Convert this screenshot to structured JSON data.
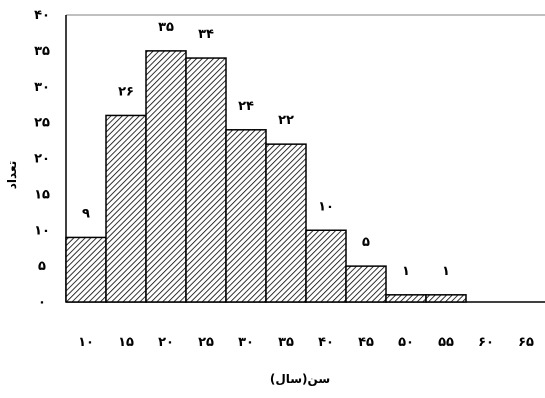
{
  "chart_data": {
    "type": "bar",
    "xlabel": "سن(سال)",
    "ylabel": "تعداد",
    "ylim": [
      0,
      40
    ],
    "y_ticks": [
      "۰",
      "۵",
      "۱۰",
      "۱۵",
      "۲۰",
      "۲۵",
      "۳۰",
      "۳۵",
      "۴۰"
    ],
    "x_ticks": [
      "۱۰",
      "۱۵",
      "۲۰",
      "۲۵",
      "۳۰",
      "۳۵",
      "۴۰",
      "۴۵",
      "۵۰",
      "۵۵",
      "۶۰",
      "۶۵"
    ],
    "bins": [
      {
        "range": [
          15,
          20
        ],
        "value": 9,
        "label": "۹"
      },
      {
        "range": [
          20,
          25
        ],
        "value": 26,
        "label": "۲۶"
      },
      {
        "range": [
          25,
          30
        ],
        "value": 35,
        "label": "۳۵"
      },
      {
        "range": [
          30,
          35
        ],
        "value": 34,
        "label": "۳۴"
      },
      {
        "range": [
          35,
          40
        ],
        "value": 24,
        "label": "۲۴"
      },
      {
        "range": [
          40,
          45
        ],
        "value": 22,
        "label": "۲۲"
      },
      {
        "range": [
          45,
          50
        ],
        "value": 10,
        "label": "۱۰"
      },
      {
        "range": [
          50,
          55
        ],
        "value": 5,
        "label": "۵"
      },
      {
        "range": [
          55,
          60
        ],
        "value": 1,
        "label": "۱"
      },
      {
        "range": [
          60,
          65
        ],
        "value": 1,
        "label": "۱"
      }
    ],
    "bar_fill": "diagonal-hatch",
    "grid": false,
    "legend": "none"
  }
}
